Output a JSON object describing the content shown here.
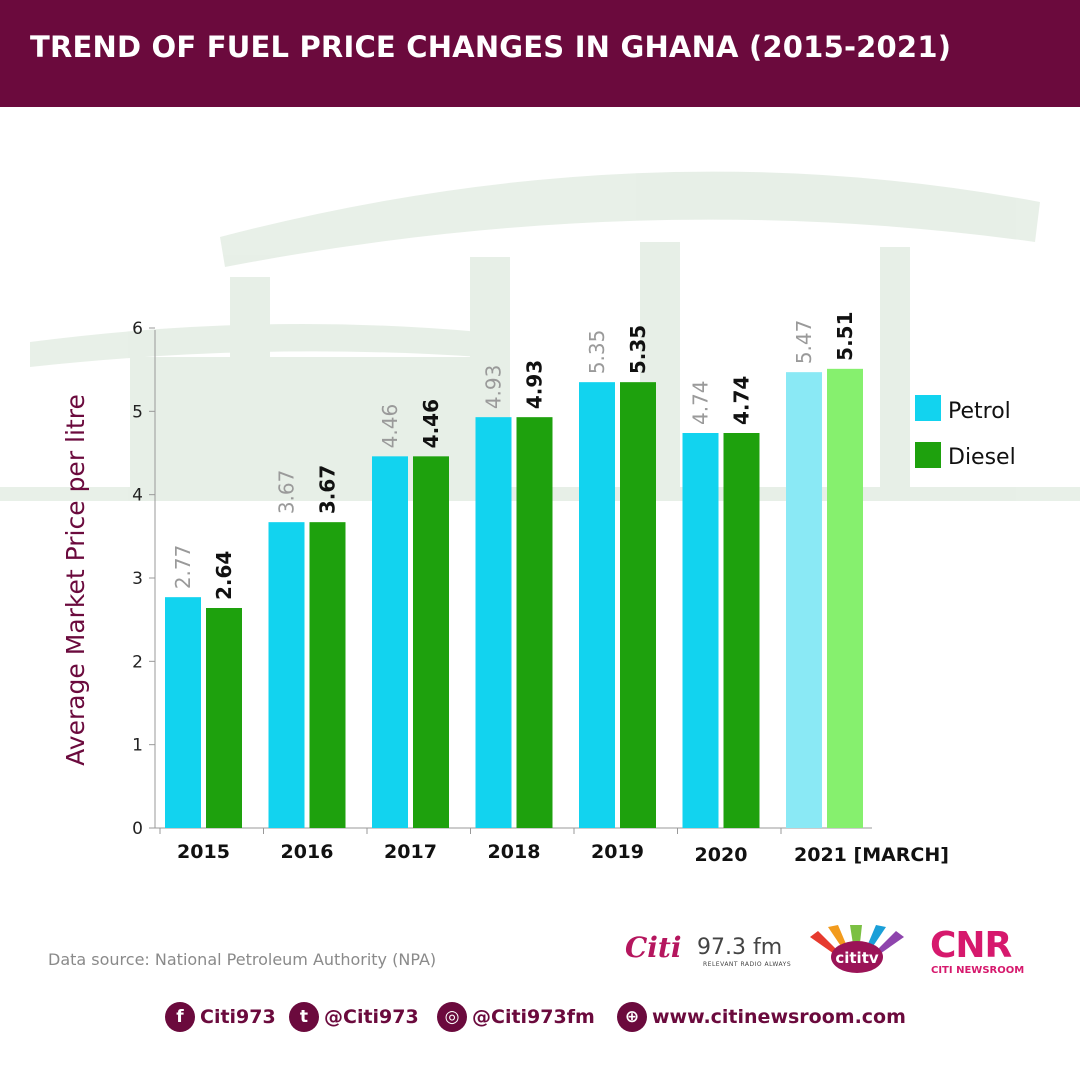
{
  "header": {
    "title": "TREND OF FUEL PRICE CHANGES IN GHANA (2015-2021)"
  },
  "colors": {
    "brand": "#6b0a3d",
    "petrol": "#12d3ef",
    "diesel": "#1ea10d",
    "petrol_projected": "#8ae9f5",
    "diesel_projected": "#86f06e"
  },
  "chart_data": {
    "type": "bar",
    "title": "TREND OF FUEL PRICE CHANGES IN GHANA (2015-2021)",
    "xlabel": "",
    "ylabel": "Average Market Price per litre",
    "ylim": [
      0,
      6
    ],
    "yticks": [
      0,
      1,
      2,
      3,
      4,
      5,
      6
    ],
    "categories": [
      "2015",
      "2016",
      "2017",
      "2018",
      "2019",
      "2020",
      "2021 [MARCH]"
    ],
    "series": [
      {
        "name": "Petrol",
        "values": [
          2.77,
          3.67,
          4.46,
          4.93,
          5.35,
          4.74,
          5.47
        ]
      },
      {
        "name": "Diesel",
        "values": [
          2.64,
          3.67,
          4.46,
          4.93,
          5.35,
          4.74,
          5.51
        ]
      }
    ],
    "data_labels": {
      "Petrol": [
        "2.77",
        "3.67",
        "4.46",
        "4.93",
        "5.35",
        "4.74",
        "5.47"
      ],
      "Diesel": [
        "2.64",
        "3.67",
        "4.46",
        "4.93",
        "5.35",
        "4.74",
        "5.51"
      ]
    },
    "grid": false,
    "legend": "right"
  },
  "footer": {
    "source": "Data source: National Petroleum Authority (NPA)",
    "logos": {
      "citi": "Citi",
      "citi_fm": "97.3 fm",
      "citi_tagline": "RELEVANT RADIO ALWAYS",
      "citi_tv": "cititv",
      "cnr": "CNR",
      "cnr_sub": "CITI NEWSROOM"
    },
    "socials": [
      {
        "icon": "facebook-icon",
        "glyph": "f",
        "text": "Citi973"
      },
      {
        "icon": "twitter-icon",
        "glyph": "t",
        "text": "@Citi973"
      },
      {
        "icon": "instagram-icon",
        "glyph": "◎",
        "text": "@Citi973fm"
      },
      {
        "icon": "globe-icon",
        "glyph": "⊕",
        "text": "www.citinewsroom.com"
      }
    ]
  }
}
